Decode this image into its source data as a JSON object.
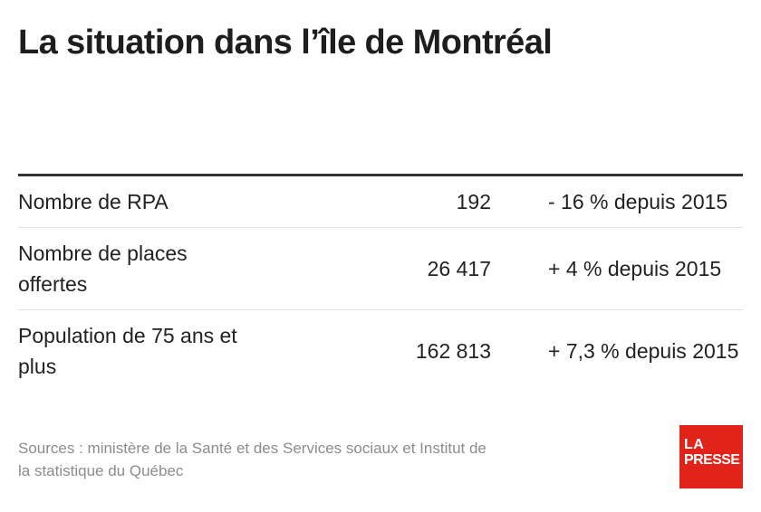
{
  "title": "La situation dans l’île de Montréal",
  "chart_data": {
    "type": "table",
    "rows": [
      {
        "label": "Nombre de RPA",
        "value": "192",
        "change": "- 16 % depuis 2015"
      },
      {
        "label": "Nombre de places offertes",
        "value": "26 417",
        "change": "+ 4 % depuis 2015"
      },
      {
        "label": "Population de 75 ans et plus",
        "value": "162 813",
        "change": "+ 7,3 % depuis 2015"
      }
    ]
  },
  "source": "Sources : ministère de la Santé et des Services sociaux et Institut de la statistique du Québec",
  "logo": {
    "line1": "LA",
    "line2": "PRESSE",
    "color": "#e2231a"
  }
}
